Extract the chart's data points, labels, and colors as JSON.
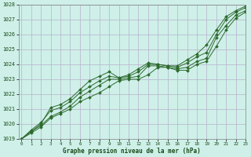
{
  "xlabel": "Graphe pression niveau de la mer (hPa)",
  "bg_color": "#cef0e8",
  "grid_color": "#b8b0cc",
  "line_color": "#2d6a2d",
  "ylim": [
    1019,
    1028
  ],
  "xlim": [
    0,
    22
  ],
  "yticks": [
    1019,
    1020,
    1021,
    1022,
    1023,
    1024,
    1025,
    1026,
    1027,
    1028
  ],
  "xticks": [
    0,
    1,
    2,
    3,
    4,
    5,
    6,
    7,
    8,
    9,
    10,
    11,
    12,
    13,
    14,
    15,
    16,
    17,
    18,
    19,
    20,
    21,
    22,
    23
  ],
  "lines": [
    [
      1019.0,
      1019.4,
      1019.8,
      1020.4,
      1020.7,
      1021.0,
      1021.5,
      1021.8,
      1022.1,
      1022.5,
      1022.9,
      1023.0,
      1023.0,
      1023.3,
      1023.8,
      1023.8,
      1023.6,
      1023.6,
      1024.0,
      1024.2,
      1025.2,
      1026.3,
      1027.1,
      1027.5
    ],
    [
      1019.0,
      1019.5,
      1019.9,
      1020.5,
      1020.8,
      1021.2,
      1021.8,
      1022.2,
      1022.6,
      1023.0,
      1023.0,
      1023.1,
      1023.2,
      1023.9,
      1023.9,
      1023.8,
      1023.7,
      1023.8,
      1024.2,
      1024.4,
      1025.8,
      1026.6,
      1027.3,
      1027.6
    ],
    [
      1019.0,
      1019.6,
      1020.1,
      1020.9,
      1021.1,
      1021.5,
      1022.1,
      1022.5,
      1022.9,
      1023.2,
      1023.1,
      1023.2,
      1023.5,
      1024.0,
      1024.0,
      1023.9,
      1023.8,
      1024.1,
      1024.5,
      1024.8,
      1026.0,
      1027.0,
      1027.5,
      1027.8
    ],
    [
      1019.0,
      1019.5,
      1020.0,
      1021.1,
      1021.3,
      1021.7,
      1022.3,
      1022.9,
      1023.2,
      1023.5,
      1023.1,
      1023.3,
      1023.7,
      1024.1,
      1024.0,
      1023.9,
      1023.9,
      1024.3,
      1024.7,
      1025.3,
      1026.3,
      1027.2,
      1027.6,
      1027.9
    ]
  ]
}
